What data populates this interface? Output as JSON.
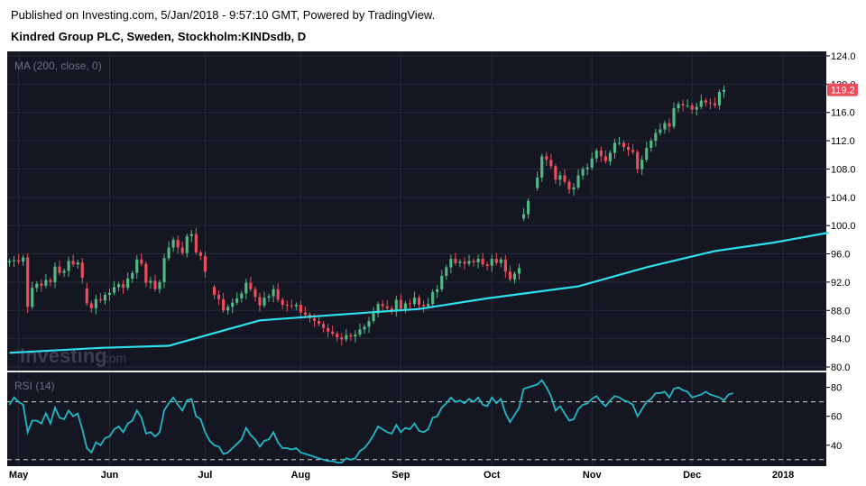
{
  "header": {
    "published": "Published on Investing.com, 5/Jan/2018 - 9:57:10 GMT, Powered by TradingView.",
    "title": "Kindred Group PLC, Sweden, Stockholm:KINDsdb, D"
  },
  "watermark": {
    "brand": "Investing",
    "suffix": ".com"
  },
  "colors": {
    "background": "#141722",
    "grid": "#242938",
    "up": "#53b987",
    "down": "#eb4d5c",
    "ma": "#2de0ec",
    "rsi": "#21b8c6",
    "price_badge": "#eb4d5c"
  },
  "chart_data": [
    {
      "type": "candlestick",
      "indicator_label": "MA (200, close, 0)",
      "last_price": "119.2",
      "ylim": [
        80,
        124
      ],
      "y_ticks": [
        "124.0",
        "120.0",
        "116.0",
        "112.0",
        "108.0",
        "104.0",
        "100.0",
        "96.0",
        "92.0",
        "88.0",
        "84.0",
        "80.0"
      ],
      "x_ticks": [
        "May",
        "Jun",
        "Jul",
        "Aug",
        "Sep",
        "Oct",
        "Nov",
        "Dec",
        "2018"
      ],
      "x_tick_days": [
        2,
        22,
        43,
        64,
        86,
        106,
        128,
        150,
        170
      ],
      "closes": [
        95.0,
        95.1,
        94.9,
        95.5,
        88.5,
        91.2,
        91.8,
        91.5,
        92.3,
        92.0,
        94.2,
        93.3,
        93.6,
        95.0,
        94.5,
        94.8,
        92.6,
        89.0,
        88.3,
        89.6,
        89.4,
        90.2,
        90.5,
        91.3,
        91.7,
        91.2,
        92.5,
        93.3,
        95.2,
        94.6,
        91.9,
        92.2,
        91.0,
        92.0,
        95.4,
        96.9,
        98.0,
        96.9,
        96.1,
        98.5,
        98.8,
        96.2,
        95.7,
        93.5,
        91.3,
        90.2,
        89.6,
        88.0,
        88.5,
        89.1,
        89.7,
        90.4,
        91.9,
        91.0,
        89.9,
        88.7,
        89.8,
        90.0,
        91.0,
        89.5,
        88.8,
        88.7,
        88.6,
        88.8,
        87.7,
        87.4,
        86.9,
        86.5,
        86.1,
        85.5,
        85.0,
        84.7,
        84.2,
        83.9,
        84.5,
        84.3,
        84.6,
        85.3,
        85.7,
        86.5,
        87.6,
        88.9,
        88.6,
        88.3,
        88.0,
        89.5,
        88.2,
        89.0,
        88.9,
        89.8,
        88.8,
        88.6,
        88.9,
        90.6,
        91.0,
        92.9,
        94.1,
        95.3,
        94.7,
        94.9,
        94.6,
        95.0,
        94.8,
        95.3,
        94.5,
        94.3,
        95.3,
        94.7,
        95.2,
        93.5,
        92.4,
        93.2,
        94.0,
        101.6,
        103.5,
        105.3,
        106.8,
        109.8,
        109.3,
        108.4,
        106.5,
        107.1,
        106.2,
        105.1,
        105.4,
        107.1,
        108.0,
        108.2,
        109.5,
        110.6,
        109.8,
        109.1,
        110.3,
        111.7,
        111.7,
        111.1,
        110.7,
        110.4,
        108.0,
        109.3,
        111.0,
        112.0,
        113.1,
        113.6,
        114.5,
        114.0,
        116.6,
        117.2,
        117.0,
        117.0,
        116.4,
        116.8,
        117.7,
        117.4,
        117.3,
        117.0,
        118.9,
        119.2
      ],
      "opens": [
        94.8,
        95.0,
        95.1,
        94.9,
        95.5,
        88.5,
        91.2,
        91.8,
        91.5,
        92.3,
        92.0,
        94.2,
        93.3,
        93.6,
        95.0,
        94.5,
        94.8,
        91.1,
        89.0,
        88.3,
        89.6,
        89.4,
        90.2,
        90.5,
        91.3,
        91.7,
        91.2,
        92.5,
        93.3,
        95.2,
        94.6,
        91.9,
        92.2,
        91.0,
        92.0,
        95.4,
        96.9,
        98.0,
        96.9,
        96.1,
        98.5,
        98.8,
        96.2,
        95.7,
        93.5,
        91.3,
        90.2,
        89.6,
        88.0,
        88.5,
        89.1,
        89.7,
        90.4,
        91.9,
        91.0,
        89.9,
        88.7,
        89.8,
        90.0,
        91.0,
        89.5,
        88.8,
        88.7,
        88.6,
        88.8,
        87.7,
        87.4,
        86.9,
        86.5,
        86.1,
        85.5,
        85.0,
        84.7,
        84.2,
        83.9,
        84.5,
        84.3,
        84.6,
        85.3,
        85.7,
        86.5,
        87.6,
        88.9,
        88.6,
        88.3,
        88.0,
        89.5,
        88.2,
        89.0,
        88.9,
        89.8,
        88.8,
        88.6,
        88.9,
        90.6,
        91.0,
        92.9,
        94.1,
        95.3,
        94.7,
        94.9,
        94.6,
        95.0,
        94.8,
        95.3,
        94.5,
        94.3,
        95.3,
        94.7,
        95.2,
        93.5,
        92.4,
        93.2,
        101.0,
        101.6,
        103.5,
        105.3,
        106.8,
        109.8,
        109.3,
        108.4,
        106.5,
        107.1,
        106.2,
        105.1,
        105.4,
        107.1,
        108.0,
        108.2,
        109.5,
        110.6,
        109.8,
        109.1,
        110.3,
        111.7,
        111.7,
        111.1,
        110.7,
        110.4,
        108.0,
        109.3,
        111.0,
        112.0,
        113.1,
        113.6,
        114.5,
        114.0,
        116.6,
        117.2,
        117.0,
        117.0,
        116.4,
        116.8,
        117.7,
        117.4,
        117.3,
        117.0,
        118.9
      ],
      "ma": [
        [
          0,
          82.0
        ],
        [
          20,
          82.7
        ],
        [
          35,
          83.0
        ],
        [
          55,
          86.6
        ],
        [
          70,
          87.3
        ],
        [
          90,
          88.2
        ],
        [
          105,
          89.7
        ],
        [
          125,
          91.4
        ],
        [
          140,
          94.1
        ],
        [
          155,
          96.4
        ],
        [
          168,
          97.6
        ],
        [
          180,
          99.0
        ]
      ],
      "day_count": 180,
      "gap_days": [
        44,
        115
      ]
    },
    {
      "type": "line",
      "indicator_label": "RSI (14)",
      "ylim": [
        28,
        86
      ],
      "y_ticks": [
        "80",
        "60",
        "40"
      ],
      "y_tick_values": [
        80,
        60,
        40
      ],
      "bands": [
        70,
        30
      ],
      "values": [
        68,
        73,
        70,
        68,
        49,
        57,
        57,
        55,
        62,
        55,
        66,
        59,
        58,
        64,
        60,
        62,
        51,
        38,
        35,
        42,
        40,
        45,
        46,
        51,
        53,
        49,
        55,
        57,
        64,
        59,
        48,
        49,
        46,
        49,
        64,
        69,
        73,
        68,
        64,
        71,
        72,
        60,
        58,
        49,
        43,
        40,
        39,
        34,
        35,
        38,
        41,
        44,
        52,
        47,
        44,
        39,
        43,
        44,
        49,
        42,
        38,
        38,
        37,
        38,
        35,
        34,
        33,
        32,
        31,
        30,
        29,
        29,
        28,
        28,
        31,
        30,
        31,
        36,
        38,
        42,
        47,
        53,
        51,
        49,
        48,
        54,
        49,
        52,
        51,
        55,
        50,
        49,
        51,
        59,
        60,
        66,
        69,
        73,
        70,
        71,
        69,
        72,
        70,
        73,
        68,
        67,
        73,
        69,
        72,
        62,
        56,
        61,
        66,
        79,
        80,
        81,
        82,
        85,
        80,
        74,
        64,
        67,
        62,
        57,
        58,
        65,
        68,
        69,
        72,
        74,
        70,
        67,
        71,
        74,
        73,
        71,
        70,
        68,
        60,
        65,
        70,
        72,
        76,
        76,
        77,
        73,
        79,
        80,
        78,
        77,
        73,
        74,
        75,
        77,
        75,
        74,
        73,
        71,
        75,
        76
      ]
    }
  ]
}
